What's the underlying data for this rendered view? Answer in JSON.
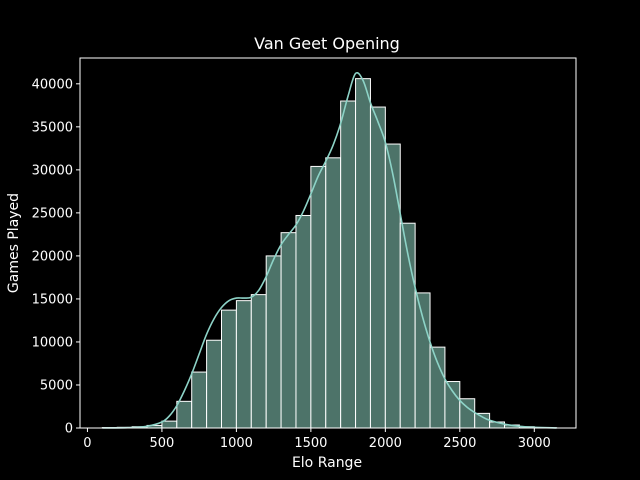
{
  "colors": {
    "background": "#000000",
    "bar_fill": "#4d7369",
    "bar_edge": "#ffffff",
    "kde_line": "#8dd3c7",
    "axis": "#ffffff",
    "text": "#ffffff"
  },
  "chart_data": {
    "type": "bar",
    "title": "Van Geet Opening",
    "xlabel": "Elo Range",
    "ylabel": "Games Played",
    "xlim": [
      -50,
      3280
    ],
    "ylim": [
      0,
      43000
    ],
    "xticks": [
      0,
      500,
      1000,
      1500,
      2000,
      2500,
      3000
    ],
    "yticks": [
      0,
      5000,
      10000,
      15000,
      20000,
      25000,
      30000,
      35000,
      40000
    ],
    "grid": false,
    "bins": [
      {
        "start": 100,
        "end": 200,
        "value": 50
      },
      {
        "start": 200,
        "end": 300,
        "value": 80
      },
      {
        "start": 300,
        "end": 400,
        "value": 150
      },
      {
        "start": 400,
        "end": 500,
        "value": 300
      },
      {
        "start": 500,
        "end": 600,
        "value": 800
      },
      {
        "start": 600,
        "end": 700,
        "value": 3100
      },
      {
        "start": 700,
        "end": 800,
        "value": 6500
      },
      {
        "start": 800,
        "end": 900,
        "value": 10200
      },
      {
        "start": 900,
        "end": 1000,
        "value": 13700
      },
      {
        "start": 1000,
        "end": 1100,
        "value": 14800
      },
      {
        "start": 1100,
        "end": 1200,
        "value": 15500
      },
      {
        "start": 1200,
        "end": 1300,
        "value": 20000
      },
      {
        "start": 1300,
        "end": 1400,
        "value": 22700
      },
      {
        "start": 1400,
        "end": 1500,
        "value": 24700
      },
      {
        "start": 1500,
        "end": 1600,
        "value": 30400
      },
      {
        "start": 1600,
        "end": 1700,
        "value": 31400
      },
      {
        "start": 1700,
        "end": 1800,
        "value": 38000
      },
      {
        "start": 1800,
        "end": 1900,
        "value": 40600
      },
      {
        "start": 1900,
        "end": 2000,
        "value": 37300
      },
      {
        "start": 2000,
        "end": 2100,
        "value": 33000
      },
      {
        "start": 2100,
        "end": 2200,
        "value": 23800
      },
      {
        "start": 2200,
        "end": 2300,
        "value": 15700
      },
      {
        "start": 2300,
        "end": 2400,
        "value": 9400
      },
      {
        "start": 2400,
        "end": 2500,
        "value": 5400
      },
      {
        "start": 2500,
        "end": 2600,
        "value": 3400
      },
      {
        "start": 2600,
        "end": 2700,
        "value": 1700
      },
      {
        "start": 2700,
        "end": 2800,
        "value": 700
      },
      {
        "start": 2800,
        "end": 2900,
        "value": 350
      },
      {
        "start": 2900,
        "end": 3000,
        "value": 150
      },
      {
        "start": 3000,
        "end": 3100,
        "value": 60
      },
      {
        "start": 3100,
        "end": 3150,
        "value": 20
      }
    ],
    "kde": {
      "x": [
        100,
        300,
        400,
        500,
        550,
        600,
        650,
        700,
        750,
        800,
        850,
        900,
        950,
        1000,
        1050,
        1100,
        1150,
        1200,
        1250,
        1300,
        1350,
        1400,
        1450,
        1500,
        1550,
        1600,
        1650,
        1700,
        1750,
        1800,
        1850,
        1900,
        1950,
        2000,
        2050,
        2100,
        2150,
        2200,
        2250,
        2300,
        2350,
        2400,
        2450,
        2500,
        2550,
        2600,
        2650,
        2700,
        2800,
        2900,
        3000,
        3150
      ],
      "y": [
        0,
        50,
        200,
        700,
        1400,
        2600,
        4300,
        6300,
        8600,
        10900,
        12700,
        14000,
        14800,
        15100,
        15100,
        15200,
        16000,
        17600,
        19600,
        21300,
        22500,
        23600,
        25200,
        27200,
        29300,
        31000,
        32900,
        35400,
        38600,
        41200,
        40400,
        37800,
        35600,
        33200,
        29500,
        24900,
        20300,
        16300,
        12900,
        10000,
        7600,
        5700,
        4300,
        3200,
        2400,
        1800,
        1300,
        900,
        450,
        200,
        80,
        10
      ]
    }
  }
}
